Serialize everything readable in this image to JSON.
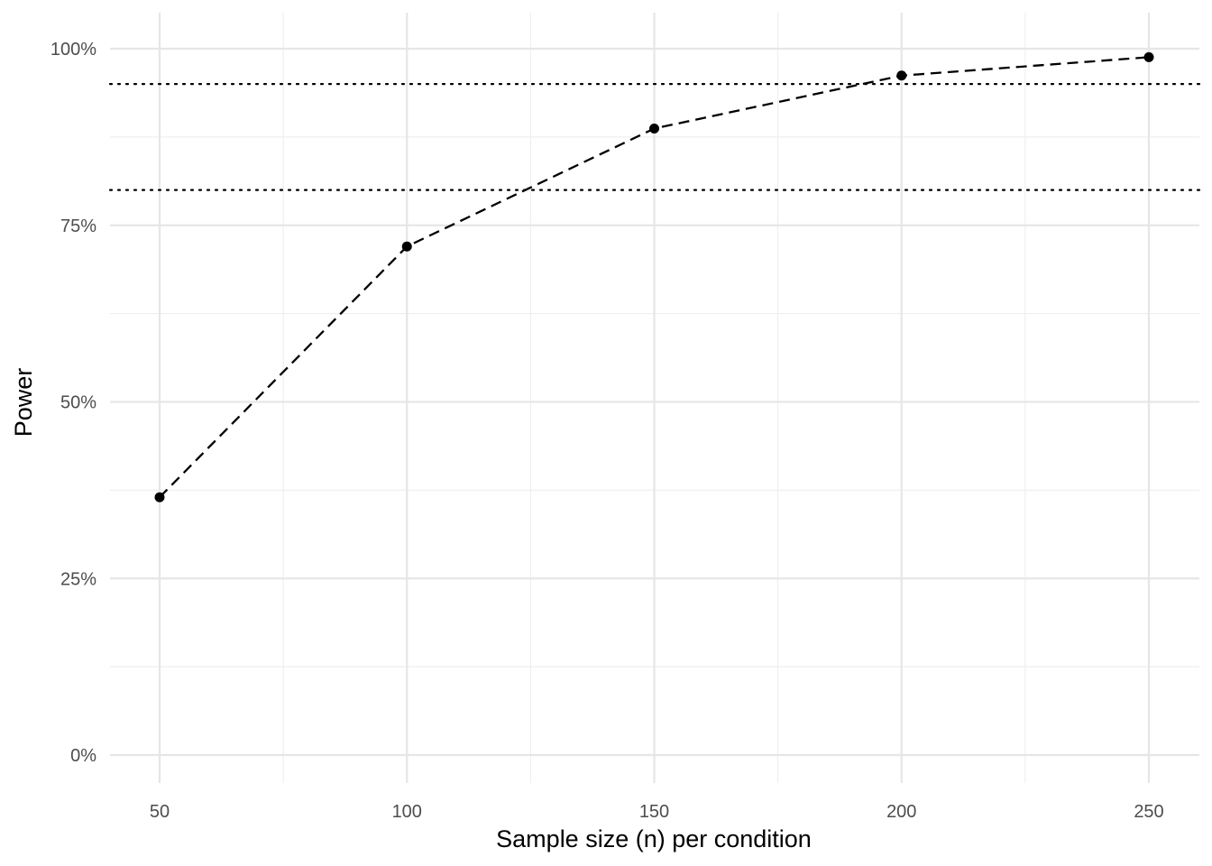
{
  "chart_data": {
    "type": "line",
    "title": "",
    "xlabel": "Sample size (n) per condition",
    "ylabel": "Power",
    "x": [
      50,
      100,
      150,
      200,
      250
    ],
    "series": [
      {
        "values": [
          0.365,
          0.72,
          0.887,
          0.962,
          0.988
        ]
      }
    ],
    "reference_lines_y": [
      0.8,
      0.95
    ],
    "xlim": [
      40,
      255
    ],
    "ylim": [
      -0.04,
      1.05
    ],
    "x_ticks": [
      50,
      100,
      150,
      200,
      250
    ],
    "x_tick_labels": [
      "50",
      "100",
      "150",
      "200",
      "250"
    ],
    "y_ticks": [
      0,
      0.25,
      0.5,
      0.75,
      1.0
    ],
    "y_tick_labels": [
      "0%",
      "25%",
      "50%",
      "75%",
      "100%"
    ],
    "grid": true,
    "legend": "none",
    "colors": {
      "line": "#000000",
      "points": "#000000",
      "grid": "#e6e6e6",
      "tick_text": "#4d4d4d"
    }
  }
}
